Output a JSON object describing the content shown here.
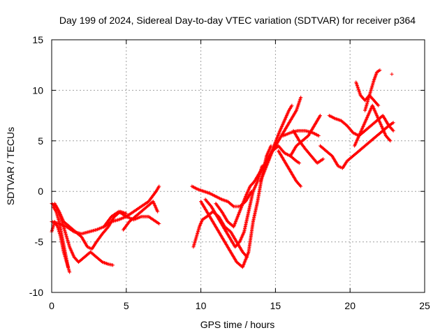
{
  "chart_data": {
    "type": "scatter",
    "title": "Day 199 of 2024, Sidereal Day-to-day VTEC variation (SDTVAR) for receiver p364",
    "xlabel": "GPS time / hours",
    "ylabel": "SDTVAR / TECUs",
    "xlim": [
      0,
      25
    ],
    "ylim": [
      -10,
      15
    ],
    "xticks": [
      "0",
      "5",
      "10",
      "15",
      "20",
      "25"
    ],
    "yticks": [
      "-10",
      "-5",
      "0",
      "5",
      "10",
      "15"
    ],
    "grid": true,
    "marker": "plus",
    "color": "#ff0000",
    "tracks": [
      [
        [
          0.0,
          -1.2
        ],
        [
          0.3,
          -1.5
        ],
        [
          0.6,
          -2.5
        ],
        [
          0.9,
          -4.0
        ],
        [
          1.2,
          -5.5
        ],
        [
          1.5,
          -6.5
        ],
        [
          1.8,
          -7.0
        ],
        [
          2.2,
          -6.5
        ],
        [
          2.6,
          -6.0
        ],
        [
          3.0,
          -6.5
        ],
        [
          3.4,
          -7.0
        ],
        [
          3.8,
          -7.2
        ],
        [
          4.1,
          -7.3
        ]
      ],
      [
        [
          0.0,
          -4.0
        ],
        [
          0.2,
          -3.0
        ],
        [
          0.4,
          -3.5
        ],
        [
          0.6,
          -4.5
        ],
        [
          0.8,
          -6.0
        ],
        [
          1.0,
          -7.0
        ],
        [
          1.2,
          -8.0
        ]
      ],
      [
        [
          0.1,
          -1.5
        ],
        [
          0.3,
          -2.0
        ],
        [
          0.5,
          -3.0
        ],
        [
          0.7,
          -4.5
        ],
        [
          0.9,
          -6.0
        ],
        [
          1.1,
          -7.5
        ]
      ],
      [
        [
          0.0,
          -3.0
        ],
        [
          0.5,
          -3.2
        ],
        [
          1.0,
          -3.5
        ],
        [
          1.5,
          -4.0
        ],
        [
          2.0,
          -4.2
        ],
        [
          2.5,
          -4.0
        ],
        [
          3.0,
          -3.8
        ],
        [
          3.5,
          -3.5
        ],
        [
          4.0,
          -3.0
        ],
        [
          4.5,
          -2.8
        ],
        [
          5.0,
          -2.5
        ],
        [
          5.5,
          -2.0
        ],
        [
          6.0,
          -1.5
        ],
        [
          6.5,
          -1.0
        ],
        [
          7.0,
          0.0
        ],
        [
          7.2,
          0.5
        ]
      ],
      [
        [
          0.2,
          -1.2
        ],
        [
          0.5,
          -2.0
        ],
        [
          0.8,
          -3.0
        ],
        [
          1.2,
          -3.5
        ],
        [
          1.6,
          -4.0
        ],
        [
          2.0,
          -4.5
        ],
        [
          2.4,
          -5.5
        ],
        [
          2.7,
          -5.7
        ],
        [
          3.0,
          -5.0
        ],
        [
          3.4,
          -4.2
        ],
        [
          3.8,
          -3.5
        ],
        [
          4.2,
          -2.5
        ],
        [
          4.6,
          -2.0
        ],
        [
          5.0,
          -2.2
        ]
      ],
      [
        [
          3.5,
          -3.5
        ],
        [
          4.0,
          -2.5
        ],
        [
          4.5,
          -2.0
        ],
        [
          5.0,
          -2.5
        ],
        [
          5.5,
          -2.8
        ],
        [
          6.0,
          -2.5
        ],
        [
          6.5,
          -2.5
        ],
        [
          7.0,
          -3.0
        ],
        [
          7.2,
          -3.2
        ]
      ],
      [
        [
          4.8,
          -3.8
        ],
        [
          5.2,
          -3.0
        ],
        [
          5.6,
          -2.5
        ],
        [
          6.0,
          -2.0
        ],
        [
          6.4,
          -1.5
        ],
        [
          6.8,
          -1.0
        ],
        [
          7.1,
          -2.0
        ]
      ],
      [
        [
          9.5,
          -5.5
        ],
        [
          9.7,
          -4.5
        ],
        [
          9.9,
          -3.5
        ],
        [
          10.1,
          -2.8
        ],
        [
          10.4,
          -2.5
        ],
        [
          10.8,
          -2.0
        ],
        [
          11.2,
          -2.5
        ],
        [
          11.6,
          -3.5
        ],
        [
          12.0,
          -4.0
        ],
        [
          12.4,
          -5.0
        ],
        [
          12.8,
          -6.0
        ],
        [
          13.1,
          -6.5
        ]
      ],
      [
        [
          9.4,
          0.5
        ],
        [
          9.8,
          0.2
        ],
        [
          10.2,
          0.0
        ],
        [
          10.6,
          -0.2
        ],
        [
          11.0,
          -0.5
        ],
        [
          11.4,
          -0.8
        ],
        [
          11.8,
          -1.0
        ],
        [
          12.2,
          -1.5
        ],
        [
          12.6,
          -1.5
        ],
        [
          13.0,
          -1.0
        ],
        [
          13.4,
          0.0
        ]
      ],
      [
        [
          10.0,
          -1.0
        ],
        [
          10.4,
          -2.0
        ],
        [
          10.8,
          -3.0
        ],
        [
          11.2,
          -4.0
        ],
        [
          11.6,
          -5.0
        ],
        [
          12.0,
          -6.0
        ],
        [
          12.4,
          -7.0
        ],
        [
          12.8,
          -7.5
        ],
        [
          13.2,
          -6.0
        ],
        [
          13.5,
          -3.0
        ],
        [
          13.8,
          -1.0
        ],
        [
          14.1,
          1.5
        ],
        [
          14.4,
          3.5
        ],
        [
          14.7,
          4.5
        ]
      ],
      [
        [
          10.3,
          -0.8
        ],
        [
          10.7,
          -1.5
        ],
        [
          11.1,
          -2.5
        ],
        [
          11.5,
          -3.5
        ],
        [
          11.9,
          -4.5
        ],
        [
          12.3,
          -5.5
        ],
        [
          12.6,
          -5.0
        ],
        [
          12.9,
          -4.0
        ],
        [
          13.2,
          -2.0
        ],
        [
          13.5,
          0.0
        ],
        [
          13.8,
          1.0
        ],
        [
          14.1,
          2.5
        ]
      ],
      [
        [
          11.0,
          -1.2
        ],
        [
          11.4,
          -2.0
        ],
        [
          11.8,
          -3.0
        ],
        [
          12.2,
          -3.5
        ],
        [
          12.6,
          -2.0
        ],
        [
          13.0,
          -0.5
        ],
        [
          13.3,
          0.5
        ],
        [
          13.6,
          1.0
        ],
        [
          14.0,
          2.0
        ],
        [
          14.4,
          3.0
        ],
        [
          14.8,
          4.0
        ],
        [
          15.2,
          4.5
        ],
        [
          15.6,
          3.8
        ],
        [
          16.0,
          3.5
        ],
        [
          16.4,
          3.0
        ],
        [
          16.6,
          2.8
        ]
      ],
      [
        [
          14.0,
          1.0
        ],
        [
          14.4,
          2.5
        ],
        [
          14.8,
          4.0
        ],
        [
          15.2,
          5.0
        ],
        [
          15.6,
          6.0
        ],
        [
          16.0,
          7.0
        ],
        [
          16.4,
          8.0
        ],
        [
          16.7,
          9.3
        ]
      ],
      [
        [
          14.5,
          3.0
        ],
        [
          14.9,
          4.5
        ],
        [
          15.3,
          6.0
        ],
        [
          15.6,
          7.0
        ],
        [
          15.9,
          8.0
        ],
        [
          16.1,
          8.5
        ]
      ],
      [
        [
          15.2,
          4.0
        ],
        [
          15.6,
          3.0
        ],
        [
          16.0,
          2.0
        ],
        [
          16.4,
          1.0
        ],
        [
          16.7,
          0.5
        ]
      ],
      [
        [
          15.5,
          5.5
        ],
        [
          16.0,
          5.8
        ],
        [
          16.5,
          6.0
        ],
        [
          17.0,
          6.0
        ],
        [
          17.5,
          5.8
        ],
        [
          17.9,
          5.5
        ]
      ],
      [
        [
          16.0,
          3.5
        ],
        [
          16.4,
          4.5
        ],
        [
          16.8,
          5.0
        ],
        [
          17.2,
          5.5
        ],
        [
          17.6,
          6.5
        ],
        [
          18.0,
          7.5
        ]
      ],
      [
        [
          16.2,
          6.0
        ],
        [
          16.6,
          5.0
        ],
        [
          17.0,
          4.2
        ],
        [
          17.4,
          3.5
        ],
        [
          17.8,
          2.8
        ],
        [
          18.2,
          3.2
        ]
      ],
      [
        [
          18.0,
          4.5
        ],
        [
          18.4,
          4.0
        ],
        [
          18.8,
          3.5
        ],
        [
          19.2,
          2.5
        ],
        [
          19.5,
          2.3
        ],
        [
          19.8,
          3.0
        ],
        [
          20.2,
          3.5
        ],
        [
          20.6,
          4.0
        ],
        [
          21.0,
          4.5
        ],
        [
          21.4,
          5.0
        ],
        [
          21.8,
          5.5
        ],
        [
          22.2,
          6.0
        ],
        [
          22.6,
          6.5
        ],
        [
          22.9,
          6.8
        ]
      ],
      [
        [
          18.6,
          7.5
        ],
        [
          19.0,
          7.2
        ],
        [
          19.4,
          7.0
        ],
        [
          19.8,
          6.5
        ],
        [
          20.2,
          5.8
        ],
        [
          20.6,
          5.5
        ],
        [
          21.0,
          6.0
        ],
        [
          21.4,
          6.5
        ],
        [
          21.8,
          7.0
        ],
        [
          22.2,
          7.5
        ],
        [
          22.6,
          6.5
        ],
        [
          22.9,
          6.0
        ]
      ],
      [
        [
          20.3,
          4.5
        ],
        [
          20.6,
          5.5
        ],
        [
          20.9,
          6.5
        ],
        [
          21.2,
          7.5
        ],
        [
          21.5,
          8.5
        ],
        [
          21.8,
          7.5
        ],
        [
          22.1,
          6.5
        ],
        [
          22.4,
          5.5
        ],
        [
          22.7,
          5.0
        ]
      ],
      [
        [
          21.0,
          8.0
        ],
        [
          21.2,
          9.0
        ],
        [
          21.4,
          10.0
        ],
        [
          21.6,
          11.0
        ],
        [
          21.8,
          11.8
        ],
        [
          22.0,
          12.0
        ]
      ],
      [
        [
          20.4,
          10.8
        ],
        [
          20.7,
          9.5
        ],
        [
          21.0,
          9.0
        ],
        [
          21.3,
          9.5
        ],
        [
          21.6,
          9.0
        ],
        [
          21.9,
          8.5
        ]
      ],
      [
        [
          22.8,
          11.6
        ]
      ]
    ]
  }
}
